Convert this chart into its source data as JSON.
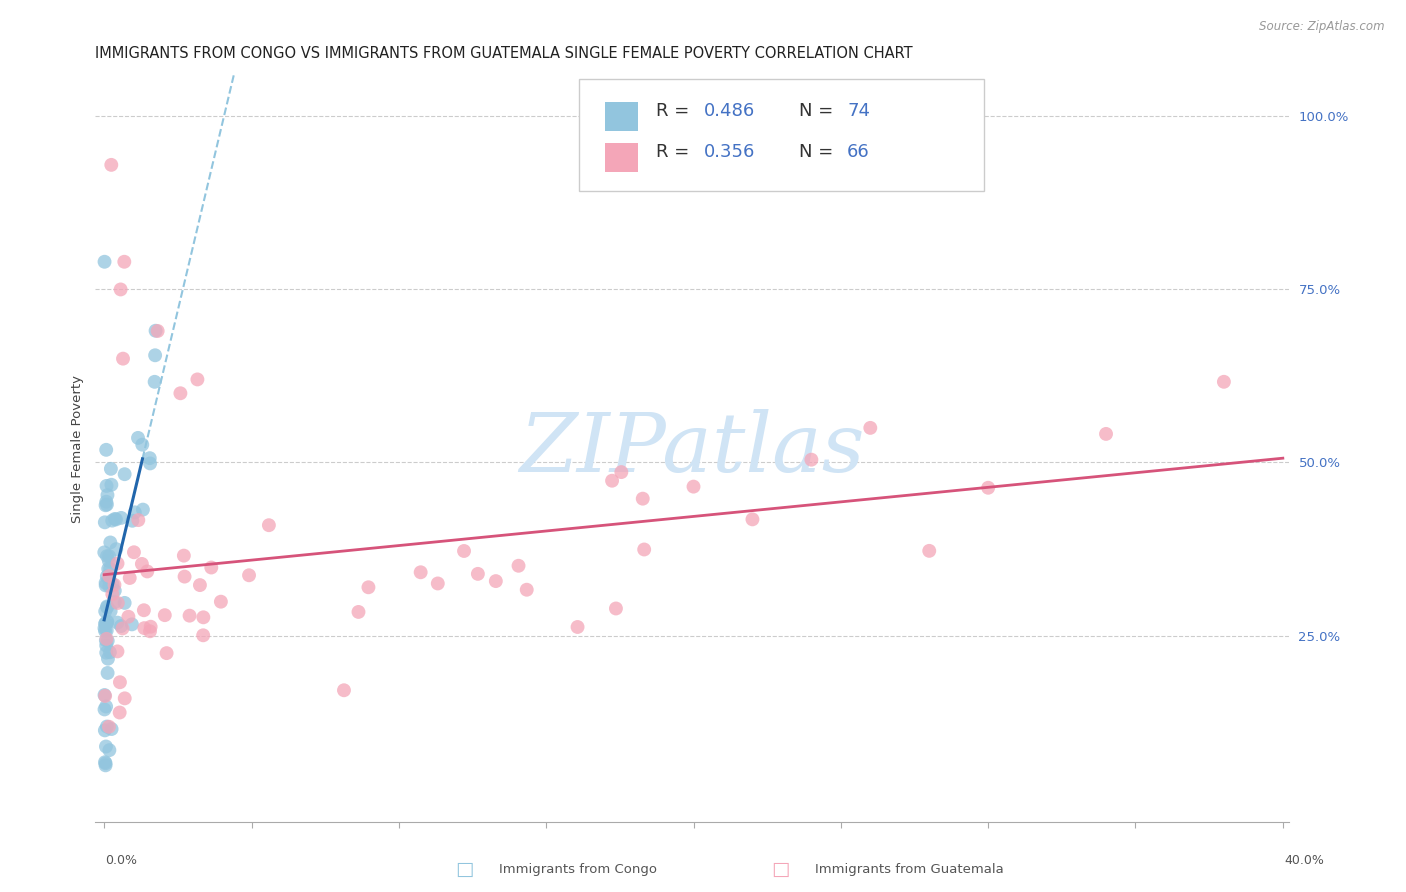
{
  "title": "IMMIGRANTS FROM CONGO VS IMMIGRANTS FROM GUATEMALA SINGLE FEMALE POVERTY CORRELATION CHART",
  "source": "Source: ZipAtlas.com",
  "ylabel": "Single Female Poverty",
  "right_yticks": [
    "100.0%",
    "75.0%",
    "50.0%",
    "25.0%"
  ],
  "right_ytick_vals": [
    1.0,
    0.75,
    0.5,
    0.25
  ],
  "xlim": [
    0.0,
    0.4
  ],
  "ylim": [
    0.0,
    1.05
  ],
  "congo_R": 0.486,
  "congo_N": 74,
  "guatemala_R": 0.356,
  "guatemala_N": 66,
  "congo_color": "#92c5de",
  "guatemala_color": "#f4a6b8",
  "congo_line_color": "#2166ac",
  "guatemala_line_color": "#d6537a",
  "congo_line_dash_color": "#92c5de",
  "watermark_text": "ZIPatlas",
  "watermark_color": "#d0e4f5",
  "legend_R1": "R = 0.486",
  "legend_N1": "N = 74",
  "legend_R2": "R = 0.356",
  "legend_N2": "N = 66",
  "legend_label1": "Immigrants from Congo",
  "legend_label2": "Immigrants from Guatemala",
  "title_fontsize": 10.5,
  "axis_label_fontsize": 9.5
}
